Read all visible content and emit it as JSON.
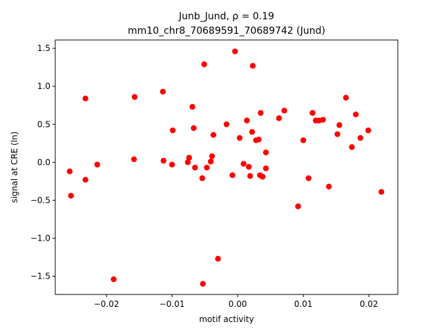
{
  "chart_data": {
    "type": "scatter",
    "title_line1": "Junb_Jund, ρ = 0.19",
    "title_line2": "mm10_chr8_70689591_70689742 (Jund)",
    "xlabel": "motif activity",
    "ylabel": "signal at CRE (ln)",
    "xlim": [
      -0.0278,
      0.0244
    ],
    "ylim": [
      -1.74,
      1.61
    ],
    "xticks": [
      -0.02,
      -0.01,
      0.0,
      0.01,
      0.02
    ],
    "xtick_labels": [
      "−0.02",
      "−0.01",
      "0.00",
      "0.01",
      "0.02"
    ],
    "yticks": [
      -1.5,
      -1.0,
      -0.5,
      0.0,
      0.5,
      1.0,
      1.5
    ],
    "ytick_labels": [
      "−1.5",
      "−1.0",
      "−0.5",
      "0.0",
      "0.5",
      "1.0",
      "1.5"
    ],
    "grid": false,
    "marker_color": "#ff0000",
    "points": [
      {
        "x": -0.0256,
        "y": -0.12
      },
      {
        "x": -0.0254,
        "y": -0.44
      },
      {
        "x": -0.0232,
        "y": 0.84
      },
      {
        "x": -0.0232,
        "y": -0.23
      },
      {
        "x": -0.0214,
        "y": -0.03
      },
      {
        "x": -0.0189,
        "y": -1.54
      },
      {
        "x": -0.0157,
        "y": 0.86
      },
      {
        "x": -0.0158,
        "y": 0.04
      },
      {
        "x": -0.0114,
        "y": 0.93
      },
      {
        "x": -0.0113,
        "y": 0.02
      },
      {
        "x": -0.0099,
        "y": 0.42
      },
      {
        "x": -0.01,
        "y": -0.03
      },
      {
        "x": -0.0076,
        "y": 0.0
      },
      {
        "x": -0.0074,
        "y": 0.06
      },
      {
        "x": -0.0069,
        "y": 0.73
      },
      {
        "x": -0.0067,
        "y": 0.45
      },
      {
        "x": -0.0065,
        "y": -0.07
      },
      {
        "x": -0.0054,
        "y": -0.21
      },
      {
        "x": -0.0051,
        "y": 1.29
      },
      {
        "x": -0.0047,
        "y": -0.07
      },
      {
        "x": -0.0041,
        "y": 0.01
      },
      {
        "x": -0.0039,
        "y": 0.08
      },
      {
        "x": -0.0037,
        "y": 0.36
      },
      {
        "x": -0.003,
        "y": -1.27
      },
      {
        "x": -0.0053,
        "y": -1.6
      },
      {
        "x": -0.0017,
        "y": 0.5
      },
      {
        "x": -0.0008,
        "y": -0.17
      },
      {
        "x": -0.0004,
        "y": 1.46
      },
      {
        "x": 0.0003,
        "y": 0.32
      },
      {
        "x": 0.0009,
        "y": -0.02
      },
      {
        "x": 0.0014,
        "y": 0.55
      },
      {
        "x": 0.0017,
        "y": -0.06
      },
      {
        "x": 0.0019,
        "y": -0.18
      },
      {
        "x": 0.0022,
        "y": 0.4
      },
      {
        "x": 0.0023,
        "y": 1.27
      },
      {
        "x": 0.0028,
        "y": 0.29
      },
      {
        "x": 0.0032,
        "y": 0.3
      },
      {
        "x": 0.0034,
        "y": -0.17
      },
      {
        "x": 0.0035,
        "y": 0.65
      },
      {
        "x": 0.0038,
        "y": -0.19
      },
      {
        "x": 0.0043,
        "y": 0.13
      },
      {
        "x": 0.0043,
        "y": -0.08
      },
      {
        "x": 0.0063,
        "y": 0.58
      },
      {
        "x": 0.0071,
        "y": 0.68
      },
      {
        "x": 0.0092,
        "y": -0.58
      },
      {
        "x": 0.01,
        "y": 0.29
      },
      {
        "x": 0.0108,
        "y": -0.21
      },
      {
        "x": 0.0114,
        "y": 0.65
      },
      {
        "x": 0.0119,
        "y": 0.55
      },
      {
        "x": 0.0124,
        "y": 0.55
      },
      {
        "x": 0.013,
        "y": 0.56
      },
      {
        "x": 0.0139,
        "y": -0.32
      },
      {
        "x": 0.0152,
        "y": 0.37
      },
      {
        "x": 0.0155,
        "y": 0.49
      },
      {
        "x": 0.0165,
        "y": 0.85
      },
      {
        "x": 0.0174,
        "y": 0.2
      },
      {
        "x": 0.018,
        "y": 0.63
      },
      {
        "x": 0.0187,
        "y": 0.32
      },
      {
        "x": 0.0199,
        "y": 0.42
      },
      {
        "x": 0.0219,
        "y": -0.39
      }
    ]
  }
}
